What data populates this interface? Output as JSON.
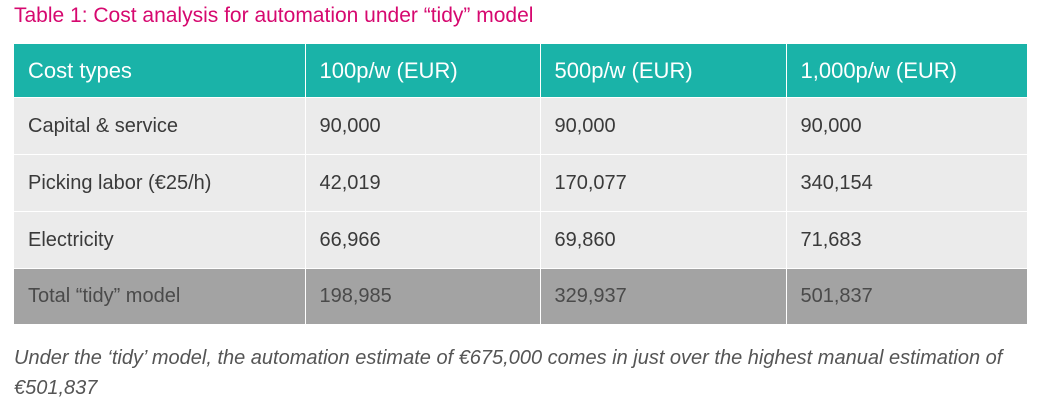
{
  "title": "Table 1: Cost analysis for automation under “tidy” model",
  "colors": {
    "title": "#d6086f",
    "header_bg": "#1ab3a8",
    "row_bg": "#ebebeb",
    "total_bg": "#a3a3a3"
  },
  "table": {
    "headers": [
      "Cost types",
      "100p/w (EUR)",
      "500p/w (EUR)",
      "1,000p/w (EUR)"
    ],
    "rows": [
      [
        "Capital & service",
        "90,000",
        "90,000",
        "90,000"
      ],
      [
        "Picking labor (€25/h)",
        "42,019",
        "170,077",
        "340,154"
      ],
      [
        "Electricity",
        "66,966",
        "69,860",
        "71,683"
      ]
    ],
    "total": [
      "Total “tidy” model",
      "198,985",
      "329,937",
      "501,837"
    ]
  },
  "caption": "Under the ‘tidy’ model, the automation estimate of €675,000 comes in just over the highest manual estimation of €501,837"
}
